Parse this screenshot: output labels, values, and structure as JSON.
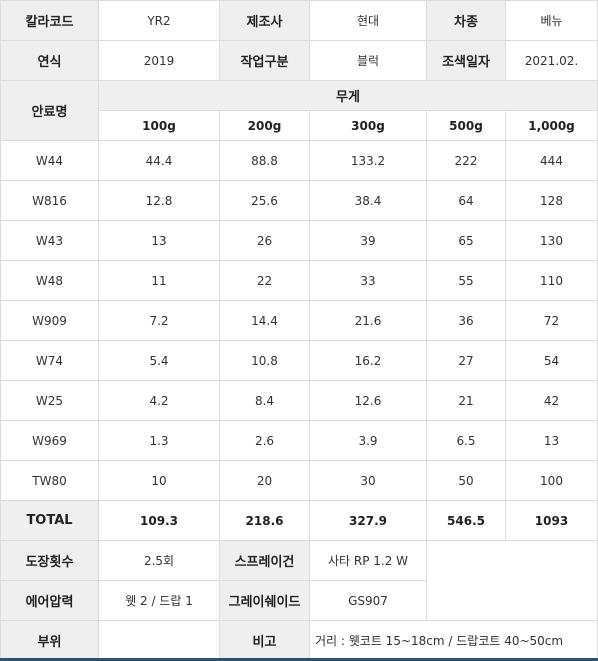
{
  "info": {
    "color_code_label": "칼라코드",
    "color_code": "YR2",
    "maker_label": "제조사",
    "maker": "현대",
    "car_label": "차종",
    "car": "베뉴",
    "year_label": "연식",
    "year": "2019",
    "work_label": "작업구분",
    "work": "블럭",
    "date_label": "조색일자",
    "date": "2021.02."
  },
  "table": {
    "pigment_label": "안료명",
    "weight_label": "무게",
    "weights": [
      "100g",
      "200g",
      "300g",
      "500g",
      "1,000g"
    ],
    "rows": [
      {
        "name": "W44",
        "values": [
          "44.4",
          "88.8",
          "133.2",
          "222",
          "444"
        ]
      },
      {
        "name": "W816",
        "values": [
          "12.8",
          "25.6",
          "38.4",
          "64",
          "128"
        ]
      },
      {
        "name": "W43",
        "values": [
          "13",
          "26",
          "39",
          "65",
          "130"
        ]
      },
      {
        "name": "W48",
        "values": [
          "11",
          "22",
          "33",
          "55",
          "110"
        ]
      },
      {
        "name": "W909",
        "values": [
          "7.2",
          "14.4",
          "21.6",
          "36",
          "72"
        ]
      },
      {
        "name": "W74",
        "values": [
          "5.4",
          "10.8",
          "16.2",
          "27",
          "54"
        ]
      },
      {
        "name": "W25",
        "values": [
          "4.2",
          "8.4",
          "12.6",
          "21",
          "42"
        ]
      },
      {
        "name": "W969",
        "values": [
          "1.3",
          "2.6",
          "3.9",
          "6.5",
          "13"
        ]
      },
      {
        "name": "TW80",
        "values": [
          "10",
          "20",
          "30",
          "50",
          "100"
        ]
      }
    ],
    "total_label": "TOTAL",
    "totals": [
      "109.3",
      "218.6",
      "327.9",
      "546.5",
      "1093"
    ]
  },
  "footer": {
    "coats_label": "도장횟수",
    "coats": "2.5회",
    "gun_label": "스프레이건",
    "gun": "사타 RP 1.2 W",
    "air_label": "에어압력",
    "air": "웻 2 / 드랍 1",
    "shade_label": "그레이쉐이드",
    "shade": "GS907",
    "part_label": "부위",
    "part": "",
    "note_label": "비고",
    "note": "거리 : 웻코트 15~18cm / 드랍코트 40~50cm"
  }
}
